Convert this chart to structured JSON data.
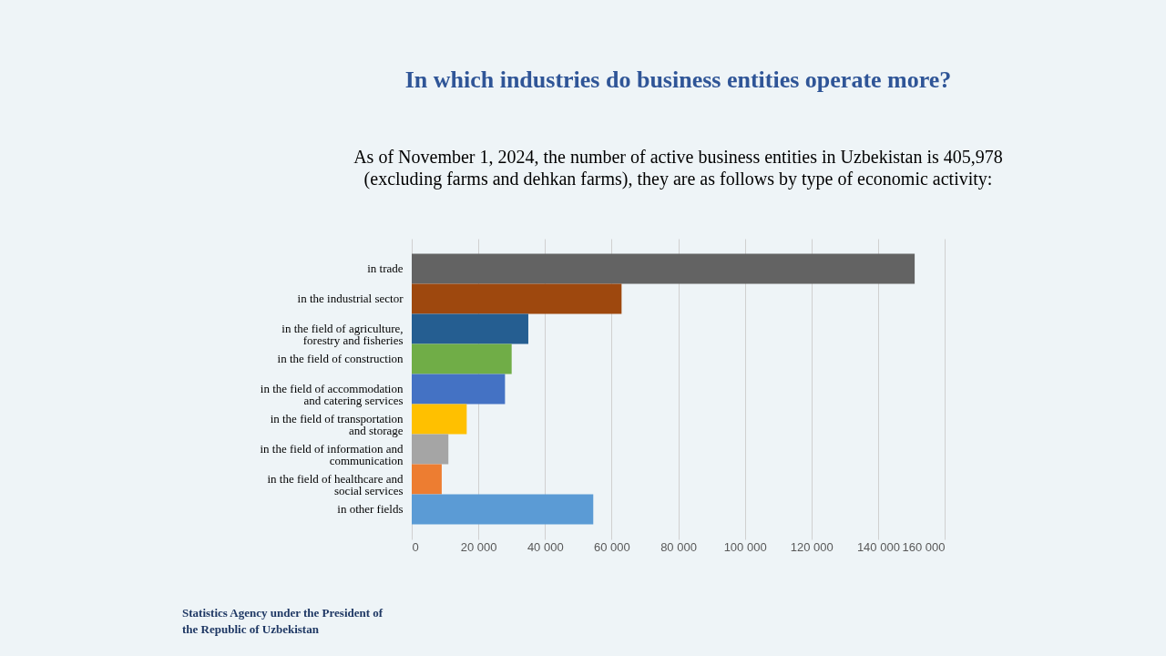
{
  "chart_data": {
    "type": "bar",
    "orientation": "horizontal",
    "title": "In which industries do business entities operate more?",
    "subtitle": "As of November 1, 2024, the number of active business entities in Uzbekistan is 405,978 (excluding farms and dehkan farms), they are as follows by type of economic activity:",
    "categories": [
      "in trade",
      "in the industrial sector",
      "in the field of agriculture, forestry and fisheries",
      "in the field of construction",
      "in the field of accommodation and catering services",
      "in the field of transportation and storage",
      "in the field of information and communication",
      "in the field of healthcare and social services",
      "in other fields"
    ],
    "values": [
      151000,
      63000,
      35000,
      30000,
      28000,
      16500,
      11000,
      9000,
      54500
    ],
    "colors": [
      "#636363",
      "#9e480e",
      "#255e91",
      "#70ad47",
      "#4472c4",
      "#ffc000",
      "#a5a5a5",
      "#ed7d31",
      "#5b9bd5"
    ],
    "xlim": [
      0,
      160000
    ],
    "xticks": [
      {
        "value": 0,
        "label": "0"
      },
      {
        "value": 20000,
        "label": "20 000"
      },
      {
        "value": 40000,
        "label": "40 000"
      },
      {
        "value": 60000,
        "label": "60 000"
      },
      {
        "value": 80000,
        "label": "80 000"
      },
      {
        "value": 100000,
        "label": "100 000"
      },
      {
        "value": 120000,
        "label": "120 000"
      },
      {
        "value": 140000,
        "label": "140 000"
      },
      {
        "value": 160000,
        "label": "160 000"
      }
    ],
    "grid": "x",
    "annotations": [
      "Statistics Agency under the President of the Republic of Uzbekistan"
    ]
  }
}
